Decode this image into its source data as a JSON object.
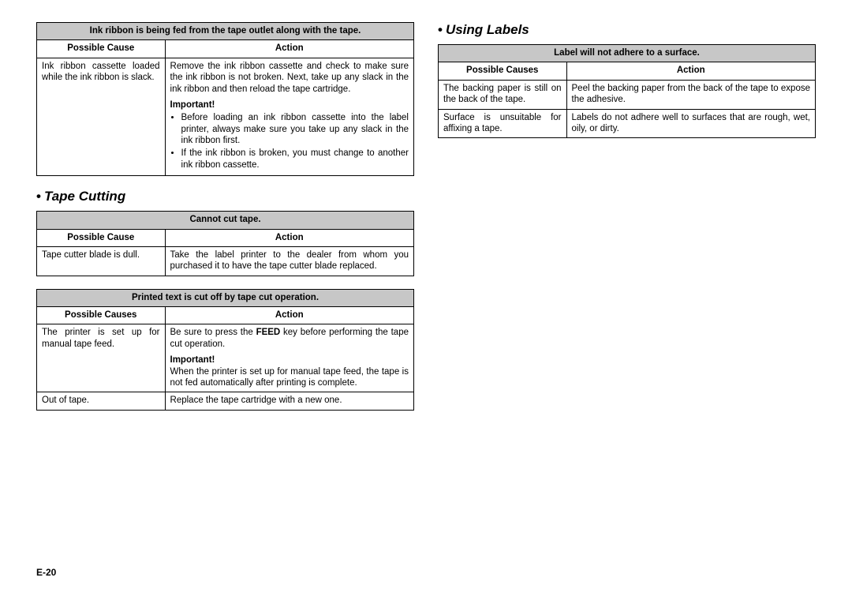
{
  "page_number": "E-20",
  "colors": {
    "header_bg": "#c7c7c7",
    "border": "#000000",
    "text": "#000000",
    "background": "#ffffff"
  },
  "left": {
    "table1": {
      "title": "Ink ribbon is being fed from the tape outlet along with the tape.",
      "cause_header": "Possible Cause",
      "action_header": "Action",
      "row1": {
        "cause": "Ink ribbon cassette loaded while the ink ribbon is slack.",
        "action_main": "Remove the ink ribbon cassette and check to make sure the ink ribbon is not broken. Next, take up any slack in the ink ribbon and then reload the tape cartridge.",
        "important_label": "Important!",
        "bullet1": "Before loading an ink ribbon cassette into the label printer, always make sure you take up any slack in the ink ribbon first.",
        "bullet2": "If the ink ribbon is broken, you must change to another ink ribbon cassette."
      }
    },
    "section2_heading": "Tape Cutting",
    "table2": {
      "title": "Cannot cut tape.",
      "cause_header": "Possible Cause",
      "action_header": "Action",
      "row1": {
        "cause": "Tape cutter blade is dull.",
        "action": "Take the label printer to the dealer from whom you purchased it to have the tape cutter blade replaced."
      }
    },
    "table3": {
      "title": "Printed text is cut off by tape cut operation.",
      "cause_header": "Possible Causes",
      "action_header": "Action",
      "row1": {
        "cause": "The printer is set up for manual tape feed.",
        "action_pre": "Be sure to press the ",
        "action_bold": "FEED",
        "action_post": " key before performing the tape cut operation.",
        "important_label": "Important!",
        "important_text": "When the printer is set up for manual tape feed, the tape is not fed automatically after printing is complete."
      },
      "row2": {
        "cause": "Out of tape.",
        "action": "Replace the tape cartridge with a new one."
      }
    }
  },
  "right": {
    "section_heading": "Using Labels",
    "table1": {
      "title": "Label will not adhere to a surface.",
      "cause_header": "Possible Causes",
      "action_header": "Action",
      "row1": {
        "cause": "The backing paper is still on the back of the tape.",
        "action": "Peel the backing paper from the back of the tape to expose the adhesive."
      },
      "row2": {
        "cause": "Surface is unsuitable for affixing a tape.",
        "action": "Labels do not adhere well to surfaces that are rough, wet, oily, or dirty."
      }
    }
  }
}
